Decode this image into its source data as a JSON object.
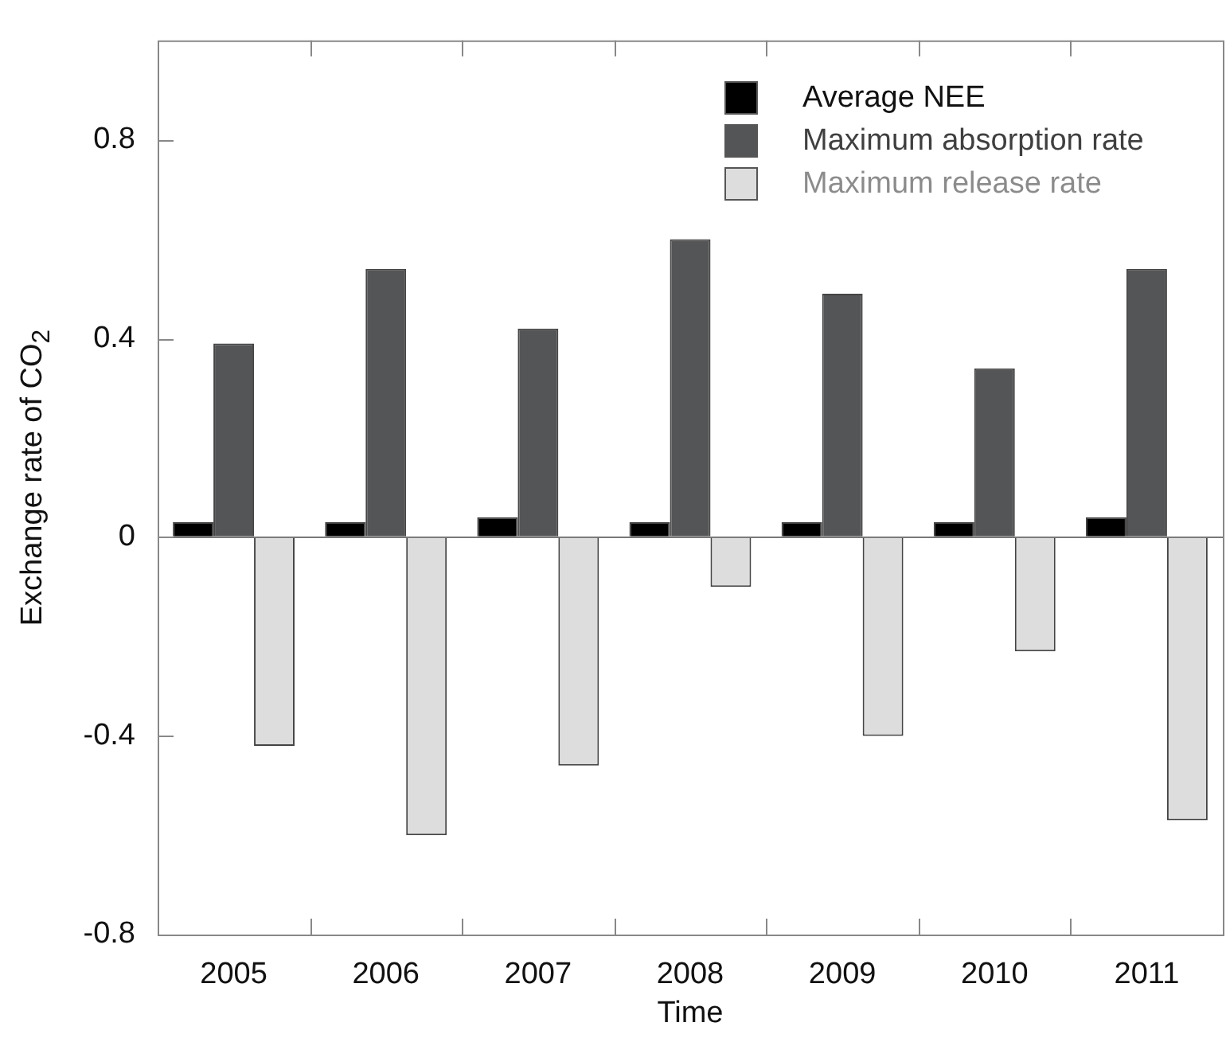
{
  "chart_data": {
    "type": "bar",
    "xlabel": "Time",
    "ylabel": "Exchange rate of CO$_{2}$",
    "categories": [
      "2005",
      "2006",
      "2007",
      "2008",
      "2009",
      "2010",
      "2011"
    ],
    "series": [
      {
        "name": "Average NEE",
        "color": "#000000",
        "values": [
          0.03,
          0.03,
          0.04,
          0.03,
          0.03,
          0.03,
          0.04
        ]
      },
      {
        "name": "Maximum absorption rate",
        "color": "#545556",
        "values": [
          0.39,
          0.54,
          0.42,
          0.6,
          0.49,
          0.34,
          0.54
        ]
      },
      {
        "name": "Maximum release rate",
        "color": "#dcdddc",
        "values": [
          -0.42,
          -0.6,
          -0.46,
          -0.1,
          -0.4,
          -0.23,
          -0.57
        ]
      }
    ],
    "ylim": [
      -0.8,
      1.0
    ],
    "yticks": [
      -0.8,
      -0.4,
      0,
      0.4,
      0.8
    ],
    "legend": "top right"
  }
}
